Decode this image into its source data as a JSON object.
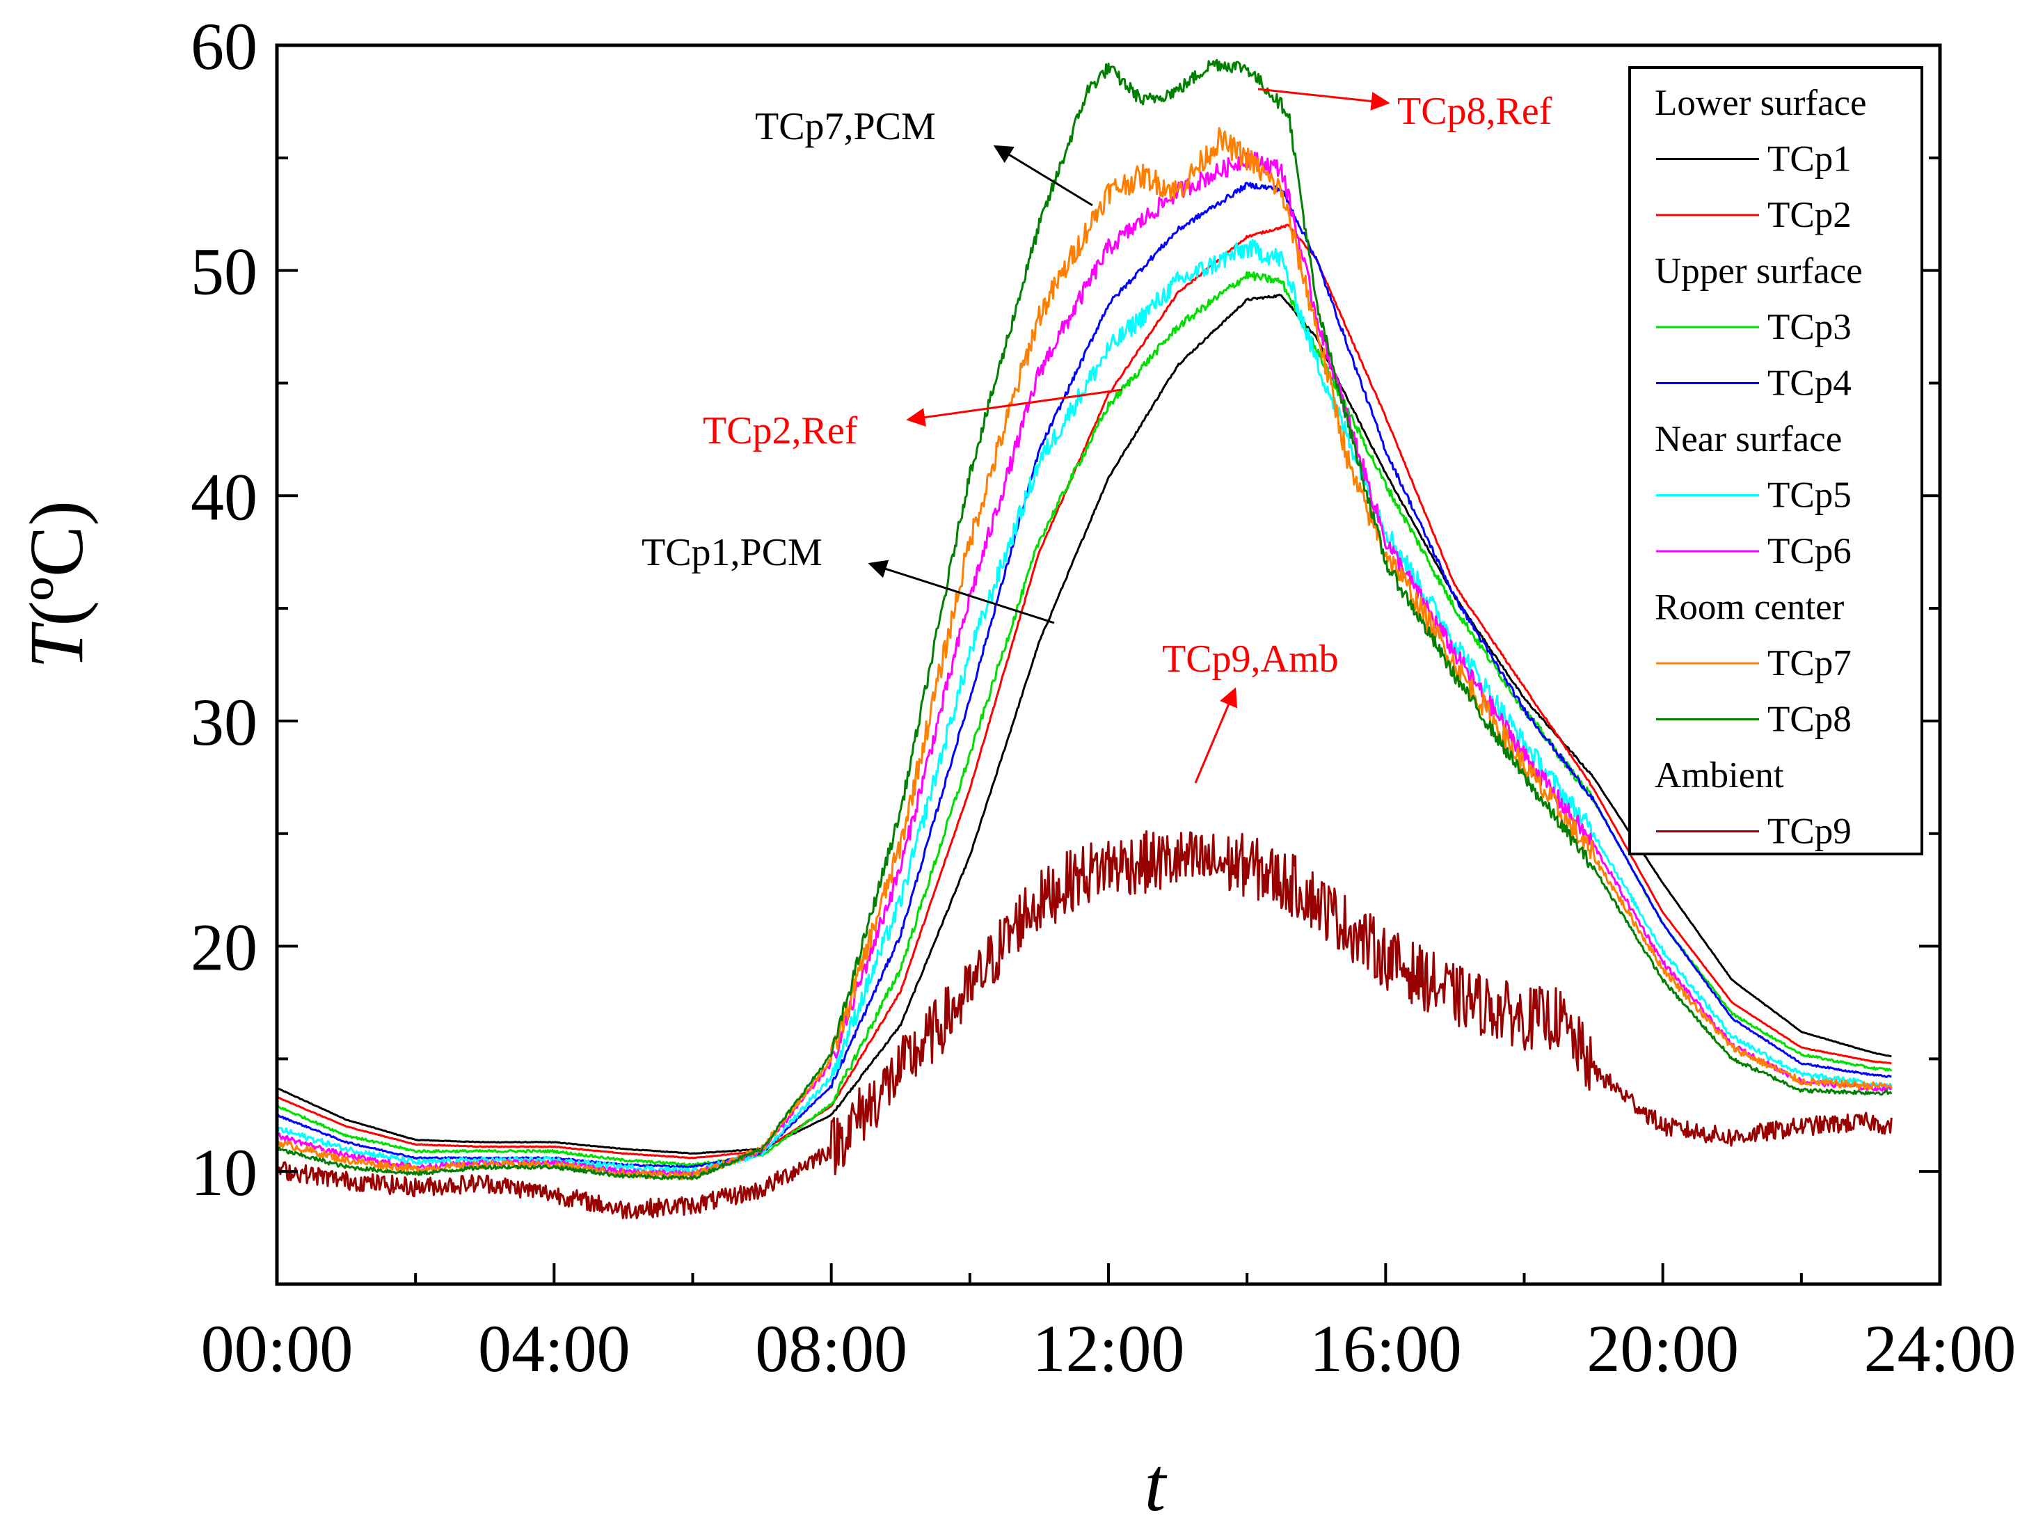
{
  "chart_data": {
    "type": "line",
    "title": "",
    "xlabel": "t",
    "ylabel_italic": "T",
    "ylabel_unit": "(ºC)",
    "xlim": [
      0,
      24
    ],
    "ylim": [
      5,
      60
    ],
    "x_ticks": [
      {
        "value": 0,
        "label": "00:00"
      },
      {
        "value": 4,
        "label": "04:00"
      },
      {
        "value": 8,
        "label": "08:00"
      },
      {
        "value": 12,
        "label": "12:00"
      },
      {
        "value": 16,
        "label": "16:00"
      },
      {
        "value": 20,
        "label": "20:00"
      },
      {
        "value": 24,
        "label": "24:00"
      }
    ],
    "y_ticks": [
      {
        "value": 10,
        "label": "10"
      },
      {
        "value": 20,
        "label": "20"
      },
      {
        "value": 30,
        "label": "30"
      },
      {
        "value": 40,
        "label": "40"
      },
      {
        "value": 50,
        "label": "50"
      },
      {
        "value": 60,
        "label": "60"
      }
    ],
    "grid": false,
    "legend_position": "top-right",
    "legend": [
      {
        "group": "Lower surface",
        "items": [
          "TCp1",
          "TCp2"
        ]
      },
      {
        "group": "Upper surface",
        "items": [
          "TCp3",
          "TCp4"
        ]
      },
      {
        "group": "Near surface",
        "items": [
          "TCp5",
          "TCp6"
        ]
      },
      {
        "group": "Room center",
        "items": [
          "TCp7",
          "TCp8"
        ]
      },
      {
        "group": "Ambient",
        "items": [
          "TCp9"
        ]
      }
    ],
    "series": [
      {
        "name": "TCp1",
        "color": "#000000",
        "noise": 0.05,
        "points": [
          [
            0,
            13.7
          ],
          [
            1,
            12.3
          ],
          [
            2,
            11.4
          ],
          [
            3,
            11.3
          ],
          [
            4,
            11.3
          ],
          [
            5,
            11.0
          ],
          [
            6,
            10.8
          ],
          [
            7,
            11.0
          ],
          [
            8,
            12.5
          ],
          [
            9,
            16.5
          ],
          [
            10,
            24.0
          ],
          [
            11,
            33.5
          ],
          [
            12,
            40.8
          ],
          [
            13,
            45.8
          ],
          [
            14,
            48.7
          ],
          [
            14.5,
            48.9
          ],
          [
            15,
            47.0
          ],
          [
            16,
            41.0
          ],
          [
            17,
            35.5
          ],
          [
            18,
            31.0
          ],
          [
            19,
            27.5
          ],
          [
            20,
            22.8
          ],
          [
            21,
            18.5
          ],
          [
            22,
            16.2
          ],
          [
            23,
            15.3
          ],
          [
            23.3,
            15.1
          ]
        ]
      },
      {
        "name": "TCp2",
        "color": "#ff0000",
        "noise": 0.05,
        "points": [
          [
            0,
            13.3
          ],
          [
            1,
            12.0
          ],
          [
            2,
            11.2
          ],
          [
            3,
            11.1
          ],
          [
            4,
            11.1
          ],
          [
            5,
            10.8
          ],
          [
            6,
            10.6
          ],
          [
            7,
            10.9
          ],
          [
            8,
            12.9
          ],
          [
            9,
            18.0
          ],
          [
            10,
            27.0
          ],
          [
            11,
            37.5
          ],
          [
            12,
            44.5
          ],
          [
            13,
            49.0
          ],
          [
            14,
            51.5
          ],
          [
            14.6,
            52.0
          ],
          [
            15,
            50.5
          ],
          [
            16,
            43.5
          ],
          [
            17,
            36.0
          ],
          [
            18,
            31.5
          ],
          [
            19,
            27.0
          ],
          [
            20,
            21.5
          ],
          [
            21,
            17.5
          ],
          [
            22,
            15.5
          ],
          [
            23,
            14.9
          ],
          [
            23.3,
            14.8
          ]
        ]
      },
      {
        "name": "TCp3",
        "color": "#00dd00",
        "noise": 0.18,
        "points": [
          [
            0,
            12.9
          ],
          [
            1,
            11.6
          ],
          [
            2,
            10.9
          ],
          [
            3,
            10.9
          ],
          [
            4,
            10.9
          ],
          [
            5,
            10.5
          ],
          [
            6,
            10.3
          ],
          [
            7,
            10.7
          ],
          [
            8,
            13.0
          ],
          [
            9,
            19.0
          ],
          [
            10,
            28.5
          ],
          [
            11,
            38.0
          ],
          [
            12,
            44.0
          ],
          [
            13,
            47.5
          ],
          [
            14,
            49.8
          ],
          [
            14.5,
            49.5
          ],
          [
            15,
            46.5
          ],
          [
            16,
            40.5
          ],
          [
            17,
            35.0
          ],
          [
            18,
            30.5
          ],
          [
            19,
            26.5
          ],
          [
            20,
            21.0
          ],
          [
            21,
            17.0
          ],
          [
            22,
            15.2
          ],
          [
            23,
            14.6
          ],
          [
            23.3,
            14.5
          ]
        ]
      },
      {
        "name": "TCp4",
        "color": "#0000ff",
        "noise": 0.12,
        "points": [
          [
            0,
            12.5
          ],
          [
            1,
            11.3
          ],
          [
            2,
            10.6
          ],
          [
            3,
            10.6
          ],
          [
            4,
            10.6
          ],
          [
            5,
            10.3
          ],
          [
            6,
            10.2
          ],
          [
            7,
            10.8
          ],
          [
            8,
            13.8
          ],
          [
            9,
            20.5
          ],
          [
            10,
            31.0
          ],
          [
            11,
            42.0
          ],
          [
            12,
            48.5
          ],
          [
            13,
            51.8
          ],
          [
            14,
            53.8
          ],
          [
            14.5,
            53.6
          ],
          [
            15,
            50.5
          ],
          [
            16,
            42.0
          ],
          [
            17,
            35.5
          ],
          [
            18,
            30.5
          ],
          [
            19,
            26.5
          ],
          [
            20,
            21.0
          ],
          [
            21,
            16.8
          ],
          [
            22,
            14.8
          ],
          [
            23,
            14.3
          ],
          [
            23.3,
            14.2
          ]
        ]
      },
      {
        "name": "TCp5",
        "color": "#00ffff",
        "noise": 0.45,
        "points": [
          [
            0,
            11.9
          ],
          [
            1,
            11.0
          ],
          [
            2,
            10.4
          ],
          [
            3,
            10.5
          ],
          [
            4,
            10.5
          ],
          [
            5,
            10.2
          ],
          [
            6,
            10.0
          ],
          [
            7,
            10.8
          ],
          [
            8,
            14.2
          ],
          [
            9,
            22.0
          ],
          [
            10,
            33.0
          ],
          [
            11,
            41.5
          ],
          [
            12,
            46.5
          ],
          [
            13,
            49.5
          ],
          [
            14,
            51.0
          ],
          [
            14.5,
            50.5
          ],
          [
            15,
            46.0
          ],
          [
            16,
            38.5
          ],
          [
            17,
            33.5
          ],
          [
            18,
            29.0
          ],
          [
            19,
            25.0
          ],
          [
            20,
            19.8
          ],
          [
            21,
            16.0
          ],
          [
            22,
            14.3
          ],
          [
            23,
            13.9
          ],
          [
            23.3,
            13.8
          ]
        ]
      },
      {
        "name": "TCp6",
        "color": "#ff00ff",
        "noise": 0.4,
        "points": [
          [
            0,
            11.6
          ],
          [
            1,
            10.7
          ],
          [
            2,
            10.2
          ],
          [
            3,
            10.4
          ],
          [
            4,
            10.4
          ],
          [
            5,
            10.0
          ],
          [
            6,
            9.9
          ],
          [
            7,
            10.9
          ],
          [
            8,
            14.8
          ],
          [
            9,
            23.5
          ],
          [
            10,
            35.5
          ],
          [
            11,
            45.5
          ],
          [
            12,
            51.0
          ],
          [
            13,
            53.5
          ],
          [
            14,
            55.0
          ],
          [
            14.5,
            54.5
          ],
          [
            15,
            48.0
          ],
          [
            16,
            38.0
          ],
          [
            17,
            33.0
          ],
          [
            18,
            28.5
          ],
          [
            19,
            24.5
          ],
          [
            20,
            19.3
          ],
          [
            21,
            15.6
          ],
          [
            22,
            14.0
          ],
          [
            23,
            13.7
          ],
          [
            23.3,
            13.7
          ]
        ]
      },
      {
        "name": "TCp7",
        "color": "#ff8000",
        "noise": 0.55,
        "points": [
          [
            0,
            11.3
          ],
          [
            1,
            10.5
          ],
          [
            2,
            10.1
          ],
          [
            3,
            10.3
          ],
          [
            4,
            10.3
          ],
          [
            5,
            9.9
          ],
          [
            6,
            9.8
          ],
          [
            7,
            11.0
          ],
          [
            8,
            15.0
          ],
          [
            9,
            24.5
          ],
          [
            10,
            38.0
          ],
          [
            11,
            48.0
          ],
          [
            12,
            53.5
          ],
          [
            12.5,
            54.2
          ],
          [
            13,
            53.5
          ],
          [
            13.6,
            55.8
          ],
          [
            14,
            55.0
          ],
          [
            14.5,
            53.5
          ],
          [
            15,
            47.5
          ],
          [
            15.5,
            41.0
          ],
          [
            16,
            37.5
          ],
          [
            17,
            32.5
          ],
          [
            18,
            28.0
          ],
          [
            19,
            24.0
          ],
          [
            20,
            19.0
          ],
          [
            21,
            15.5
          ],
          [
            22,
            14.0
          ],
          [
            23,
            13.8
          ],
          [
            23.3,
            13.8
          ]
        ]
      },
      {
        "name": "TCp8",
        "color": "#008000",
        "noise": 0.3,
        "points": [
          [
            0,
            11.0
          ],
          [
            1,
            10.2
          ],
          [
            2,
            9.9
          ],
          [
            3,
            10.2
          ],
          [
            4,
            10.2
          ],
          [
            5,
            9.8
          ],
          [
            6,
            9.7
          ],
          [
            7,
            11.0
          ],
          [
            8,
            15.2
          ],
          [
            9,
            26.0
          ],
          [
            10,
            41.0
          ],
          [
            11,
            52.0
          ],
          [
            11.7,
            58.0
          ],
          [
            12,
            59.0
          ],
          [
            12.5,
            57.5
          ],
          [
            13,
            58.0
          ],
          [
            13.5,
            59.2
          ],
          [
            14,
            59.0
          ],
          [
            14.6,
            57.0
          ],
          [
            15,
            48.5
          ],
          [
            16,
            37.0
          ],
          [
            17,
            32.0
          ],
          [
            18,
            27.5
          ],
          [
            19,
            23.5
          ],
          [
            20,
            18.5
          ],
          [
            21,
            15.0
          ],
          [
            22,
            13.6
          ],
          [
            23,
            13.5
          ],
          [
            23.3,
            13.5
          ]
        ]
      },
      {
        "name": "TCp9",
        "color": "#990000",
        "noise": 1.4,
        "points": [
          [
            0,
            10.1
          ],
          [
            1,
            9.6
          ],
          [
            2,
            9.3
          ],
          [
            3,
            9.5
          ],
          [
            4,
            9.0
          ],
          [
            5,
            8.3
          ],
          [
            6,
            8.5
          ],
          [
            7,
            9.2
          ],
          [
            8,
            11.0
          ],
          [
            9,
            14.5
          ],
          [
            10,
            18.0
          ],
          [
            10.8,
            21.5
          ],
          [
            11.5,
            23.0
          ],
          [
            12,
            23.6
          ],
          [
            13,
            23.8
          ],
          [
            14,
            23.6
          ],
          [
            14.8,
            22.5
          ],
          [
            15,
            22.0
          ],
          [
            16,
            19.5
          ],
          [
            17,
            17.8
          ],
          [
            18,
            16.8
          ],
          [
            18.5,
            16.8
          ],
          [
            19,
            14.5
          ],
          [
            20,
            12.0
          ],
          [
            21,
            11.5
          ],
          [
            22,
            12.0
          ],
          [
            23,
            12.2
          ],
          [
            23.3,
            12.0
          ]
        ]
      }
    ],
    "annotations": [
      {
        "text": "TCp7,PCM",
        "color": "#000000"
      },
      {
        "text": "TCp8,Ref",
        "color": "#ff0000"
      },
      {
        "text": "TCp2,Ref",
        "color": "#ff0000"
      },
      {
        "text": "TCp1,PCM",
        "color": "#000000"
      },
      {
        "text": "TCp9,Amb",
        "color": "#ff0000"
      }
    ]
  }
}
